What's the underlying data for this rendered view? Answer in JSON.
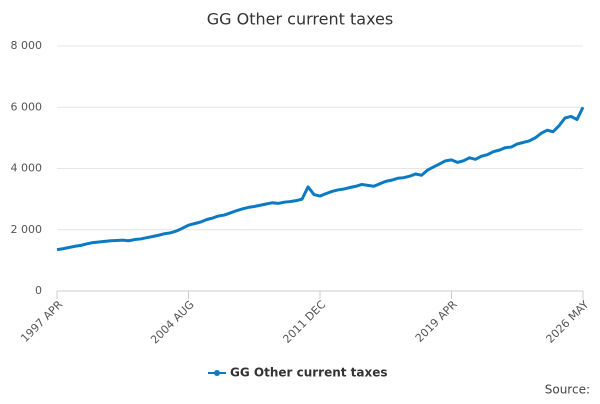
{
  "chart_data": {
    "type": "line",
    "title": "GG Other current taxes",
    "source": "Source:",
    "categories": [
      "1997 APR",
      null,
      null,
      null,
      null,
      null,
      null,
      null,
      null,
      null,
      null,
      null,
      null,
      null,
      null,
      null,
      null,
      null,
      null,
      null,
      null,
      null,
      "2004 AUG",
      null,
      null,
      null,
      null,
      null,
      null,
      null,
      null,
      null,
      null,
      null,
      null,
      null,
      null,
      null,
      null,
      null,
      null,
      null,
      null,
      null,
      "2011 DEC",
      null,
      null,
      null,
      null,
      null,
      null,
      null,
      null,
      null,
      null,
      null,
      null,
      null,
      null,
      null,
      null,
      null,
      null,
      null,
      null,
      null,
      "2019 APR",
      null,
      null,
      null,
      null,
      null,
      null,
      null,
      null,
      null,
      null,
      null,
      null,
      null,
      null,
      null,
      null,
      null,
      null,
      null,
      null,
      null,
      "2026 MAY"
    ],
    "series": [
      {
        "name": "GG Other current taxes",
        "color": "#0a7bc2",
        "values": [
          1350,
          1380,
          1420,
          1460,
          1490,
          1540,
          1580,
          1600,
          1620,
          1640,
          1650,
          1660,
          1640,
          1680,
          1700,
          1740,
          1780,
          1820,
          1870,
          1900,
          1960,
          2050,
          2150,
          2200,
          2250,
          2330,
          2380,
          2450,
          2480,
          2550,
          2620,
          2680,
          2730,
          2760,
          2800,
          2840,
          2880,
          2860,
          2900,
          2920,
          2950,
          3000,
          3400,
          3150,
          3100,
          3180,
          3250,
          3300,
          3330,
          3380,
          3420,
          3480,
          3450,
          3420,
          3500,
          3580,
          3620,
          3680,
          3700,
          3750,
          3820,
          3780,
          3950,
          4050,
          4150,
          4250,
          4280,
          4200,
          4250,
          4350,
          4300,
          4400,
          4450,
          4550,
          4600,
          4680,
          4700,
          4800,
          4850,
          4900,
          5000,
          5150,
          5250,
          5200,
          5400,
          5650,
          5700,
          5600,
          6000
        ]
      }
    ],
    "ylim": [
      0,
      8000
    ],
    "yticks": [
      0,
      {
        "value": 2000,
        "label": "2 000"
      },
      {
        "value": 4000,
        "label": "4 000"
      },
      {
        "value": 6000,
        "label": "6 000"
      },
      {
        "value": 8000,
        "label": "8 000"
      }
    ],
    "grid": true,
    "legend": "bottom"
  }
}
